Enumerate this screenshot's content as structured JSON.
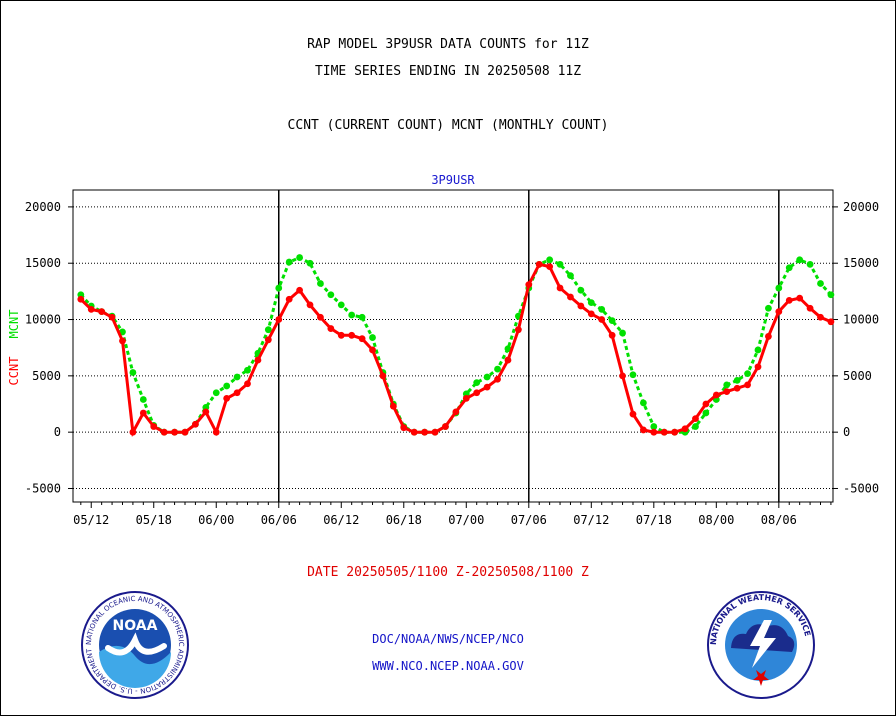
{
  "header": {
    "line1": "RAP MODEL 3P9USR DATA COUNTS for 11Z",
    "line2": "TIME SERIES ENDING IN 20250508 11Z",
    "line3": "CCNT (CURRENT COUNT) MCNT (MONTHLY COUNT)"
  },
  "footer": {
    "date_range": "DATE 20250505/1100 Z-20250508/1100 Z",
    "org_line": "DOC/NOAA/NWS/NCEP/NCO",
    "url_line": "WWW.NCO.NCEP.NOAA.GOV"
  },
  "logos": {
    "left": {
      "text": "NOAA",
      "ring_text": "NATIONAL OCEANIC AND ATMOSPHERIC ADMINISTRATION - U.S. DEPARTMENT OF COMMERCE"
    },
    "right": {
      "ring_text": "NATIONAL WEATHER SERVICE"
    }
  },
  "colors": {
    "ccnt": "#ff0000",
    "mcnt": "#00e000",
    "title": "#1a1ad0",
    "frame": "#000000"
  },
  "chart_data": {
    "type": "line",
    "title": "3P9USR",
    "ylabel_left": [
      "CCNT",
      "MCNT"
    ],
    "y_ticks": [
      -5000,
      0,
      5000,
      10000,
      15000,
      20000
    ],
    "ylim": [
      -6200,
      21500
    ],
    "x_ticks": [
      "05/12",
      "05/18",
      "06/00",
      "06/06",
      "06/12",
      "06/18",
      "07/00",
      "07/06",
      "07/12",
      "07/18",
      "08/00",
      "08/06"
    ],
    "x_index_range": [
      -0.75,
      72.2
    ],
    "grid": true,
    "day_boundaries": [
      19,
      43,
      67
    ],
    "x": [
      0,
      1,
      2,
      3,
      4,
      5,
      6,
      7,
      8,
      9,
      10,
      11,
      12,
      13,
      14,
      15,
      16,
      17,
      18,
      19,
      20,
      21,
      22,
      23,
      24,
      25,
      26,
      27,
      28,
      29,
      30,
      31,
      32,
      33,
      34,
      35,
      36,
      37,
      38,
      39,
      40,
      41,
      42,
      43,
      44,
      45,
      46,
      47,
      48,
      49,
      50,
      51,
      52,
      53,
      54,
      55,
      56,
      57,
      58,
      59,
      60,
      61,
      62,
      63,
      64,
      65,
      66,
      67,
      68,
      69,
      70,
      71,
      72
    ],
    "series": [
      {
        "name": "CCNT",
        "color": "#ff0000",
        "style": "solid",
        "values": [
          11800,
          10900,
          10700,
          10200,
          8100,
          0,
          1700,
          500,
          0,
          0,
          0,
          700,
          1800,
          0,
          3000,
          3500,
          4300,
          6400,
          8200,
          10000,
          11800,
          12600,
          11300,
          10200,
          9200,
          8600,
          8600,
          8300,
          7300,
          5000,
          2300,
          400,
          0,
          0,
          0,
          500,
          1800,
          3000,
          3500,
          4000,
          4700,
          6400,
          9100,
          13100,
          14900,
          14700,
          12800,
          12000,
          11200,
          10500,
          10000,
          8600,
          5000,
          1600,
          200,
          0,
          0,
          0,
          300,
          1200,
          2500,
          3300,
          3600,
          3900,
          4200,
          5800,
          8500,
          10700,
          11700,
          11900,
          11000,
          10200,
          9800
        ]
      },
      {
        "name": "MCNT",
        "color": "#00e000",
        "style": "dotted",
        "values": [
          12200,
          11200,
          10700,
          10300,
          8900,
          5300,
          2900,
          600,
          0,
          0,
          0,
          700,
          2200,
          3500,
          4100,
          4900,
          5500,
          7000,
          9100,
          12800,
          15100,
          15500,
          15000,
          13200,
          12200,
          11300,
          10400,
          10200,
          8400,
          5300,
          2500,
          500,
          0,
          0,
          0,
          500,
          1700,
          3400,
          4400,
          4900,
          5600,
          7400,
          10300,
          12800,
          14900,
          15300,
          14900,
          13900,
          12600,
          11500,
          10900,
          9900,
          8800,
          5100,
          2600,
          500,
          0,
          0,
          0,
          500,
          1700,
          2900,
          4200,
          4600,
          5200,
          7300,
          11000,
          12800,
          14600,
          15300,
          14900,
          13200,
          12200
        ]
      }
    ]
  }
}
